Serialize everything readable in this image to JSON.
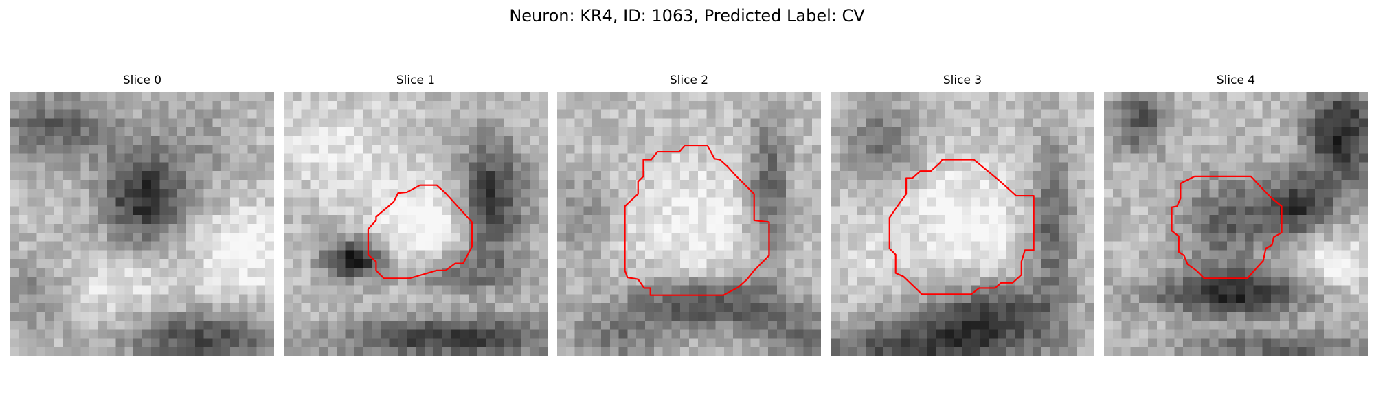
{
  "figure": {
    "title": "Neuron: KR4, ID: 1063, Predicted Label: CV"
  },
  "panels": [
    {
      "title": "Slice 0",
      "has_outline": false
    },
    {
      "title": "Slice 1",
      "has_outline": true
    },
    {
      "title": "Slice 2",
      "has_outline": true
    },
    {
      "title": "Slice 3",
      "has_outline": true
    },
    {
      "title": "Slice 4",
      "has_outline": true
    }
  ],
  "colors": {
    "outline": "#ff0000",
    "colormap": "grayscale"
  }
}
